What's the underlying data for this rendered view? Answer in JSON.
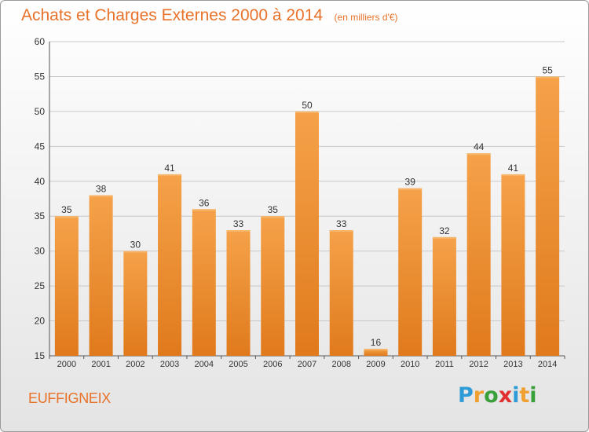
{
  "title": "Achats et Charges Externes 2000 à 2014",
  "subtitle": "(en milliers d'€)",
  "commune": "EUFFIGNEIX",
  "logo": {
    "text": "Proxiti",
    "letter_colors": [
      "#2e9bd6",
      "#f0a030",
      "#3aa03a",
      "#e03030",
      "#2e9bd6",
      "#f0a030",
      "#3aa03a"
    ]
  },
  "colors": {
    "title": "#e8722a",
    "bar_light": "#f5a24a",
    "bar_dark": "#e07a1c",
    "grid": "#c8c8c8",
    "axis_text": "#333333"
  },
  "chart_data": {
    "type": "bar",
    "categories": [
      "2000",
      "2001",
      "2002",
      "2003",
      "2004",
      "2005",
      "2006",
      "2007",
      "2008",
      "2009",
      "2010",
      "2011",
      "2012",
      "2013",
      "2014"
    ],
    "values": [
      35,
      38,
      30,
      41,
      36,
      33,
      35,
      50,
      33,
      16,
      39,
      32,
      44,
      41,
      55
    ],
    "ylim": [
      15,
      60
    ],
    "yticks": [
      15,
      20,
      25,
      30,
      35,
      40,
      45,
      50,
      55,
      60
    ],
    "grid": true,
    "xlabel": "",
    "ylabel": ""
  }
}
